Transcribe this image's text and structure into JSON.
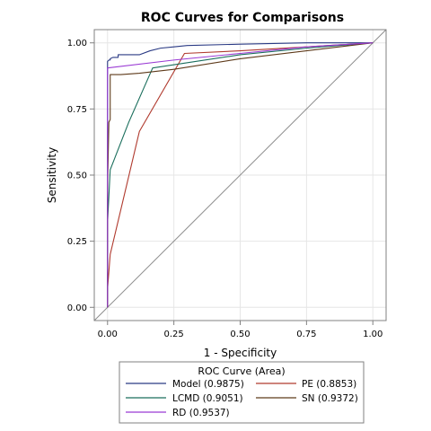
{
  "chart_data": {
    "type": "line",
    "title": "ROC Curves for Comparisons",
    "xlabel": "1 - Specificity",
    "ylabel": "Sensitivity",
    "xlim": [
      -0.05,
      1.05
    ],
    "ylim": [
      -0.05,
      1.05
    ],
    "xticks": [
      0.0,
      0.25,
      0.5,
      0.75,
      1.0
    ],
    "yticks": [
      0.0,
      0.25,
      0.5,
      0.75,
      1.0
    ],
    "xtick_labels": [
      "0.00",
      "0.25",
      "0.50",
      "0.75",
      "1.00"
    ],
    "ytick_labels": [
      "0.00",
      "0.25",
      "0.50",
      "0.75",
      "1.00"
    ],
    "grid": true,
    "reference_line": true,
    "legend": {
      "title": "ROC Curve (Area)",
      "placement": "bottom",
      "columns": 2
    },
    "series": [
      {
        "name": "Model",
        "area_label": "(0.9875)",
        "color": "#2a3a84",
        "x": [
          0,
          0,
          0.005,
          0.01,
          0.01,
          0.02,
          0.03,
          0.04,
          0.04,
          0.08,
          0.12,
          0.16,
          0.2,
          0.25,
          0.3,
          0.5,
          0.75,
          1.0
        ],
        "y": [
          0,
          0.93,
          0.935,
          0.935,
          0.94,
          0.945,
          0.945,
          0.945,
          0.955,
          0.955,
          0.955,
          0.97,
          0.98,
          0.985,
          0.99,
          0.995,
          1.0,
          1.0
        ]
      },
      {
        "name": "PE",
        "area_label": "(0.8853)",
        "color": "#b03a2e",
        "x": [
          0,
          0,
          0.01,
          0.12,
          0.29,
          0.5,
          0.75,
          1.0
        ],
        "y": [
          0,
          0.07,
          0.2,
          0.665,
          0.96,
          0.97,
          0.985,
          1.0
        ]
      },
      {
        "name": "LCMD",
        "area_label": "(0.9051)",
        "color": "#1a6e5c",
        "x": [
          0,
          0,
          0.01,
          0.08,
          0.17,
          0.5,
          0.75,
          1.0
        ],
        "y": [
          0,
          0.32,
          0.52,
          0.7,
          0.905,
          0.955,
          0.98,
          1.0
        ]
      },
      {
        "name": "SN",
        "area_label": "(0.9372)",
        "color": "#5e3a1a",
        "x": [
          0,
          0,
          0.005,
          0.01,
          0.01,
          0.05,
          0.12,
          0.25,
          0.5,
          0.75,
          1.0
        ],
        "y": [
          0,
          0.45,
          0.7,
          0.71,
          0.88,
          0.88,
          0.885,
          0.9,
          0.94,
          0.97,
          1.0
        ]
      },
      {
        "name": "RD",
        "area_label": "(0.9537)",
        "color": "#9a3ad4",
        "x": [
          0,
          0,
          0.25,
          0.5,
          0.75,
          1.0
        ],
        "y": [
          0,
          0.905,
          0.935,
          0.96,
          0.985,
          1.0
        ]
      }
    ]
  },
  "colors": {
    "frame": "#808080",
    "grid": "#e6e6e6",
    "reference": "#8c8c8c"
  }
}
